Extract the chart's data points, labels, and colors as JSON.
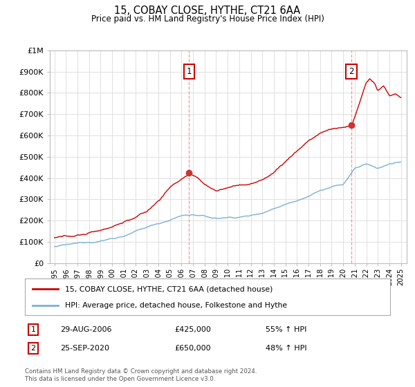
{
  "title": "15, COBAY CLOSE, HYTHE, CT21 6AA",
  "subtitle": "Price paid vs. HM Land Registry's House Price Index (HPI)",
  "ylim": [
    0,
    1000000
  ],
  "yticks": [
    0,
    100000,
    200000,
    300000,
    400000,
    500000,
    600000,
    700000,
    800000,
    900000,
    1000000
  ],
  "ytick_labels": [
    "£0",
    "£100K",
    "£200K",
    "£300K",
    "£400K",
    "£500K",
    "£600K",
    "£700K",
    "£800K",
    "£900K",
    "£1M"
  ],
  "xlim_start": 1994.6,
  "xlim_end": 2025.5,
  "sale1_date": 2006.66,
  "sale1_price": 425000,
  "sale1_label": "1",
  "sale2_date": 2020.73,
  "sale2_price": 650000,
  "sale2_label": "2",
  "red_color": "#cc0000",
  "blue_color": "#7ab0d4",
  "grid_color": "#e0e0e0",
  "bg_color": "#ffffff",
  "vline_color": "#ff8888",
  "legend_line1": "15, COBAY CLOSE, HYTHE, CT21 6AA (detached house)",
  "legend_line2": "HPI: Average price, detached house, Folkestone and Hythe",
  "annotation1_box": "1",
  "annotation1_date": "29-AUG-2006",
  "annotation1_price": "£425,000",
  "annotation1_hpi": "55% ↑ HPI",
  "annotation2_box": "2",
  "annotation2_date": "25-SEP-2020",
  "annotation2_price": "£650,000",
  "annotation2_hpi": "48% ↑ HPI",
  "footer": "Contains HM Land Registry data © Crown copyright and database right 2024.\nThis data is licensed under the Open Government Licence v3.0."
}
